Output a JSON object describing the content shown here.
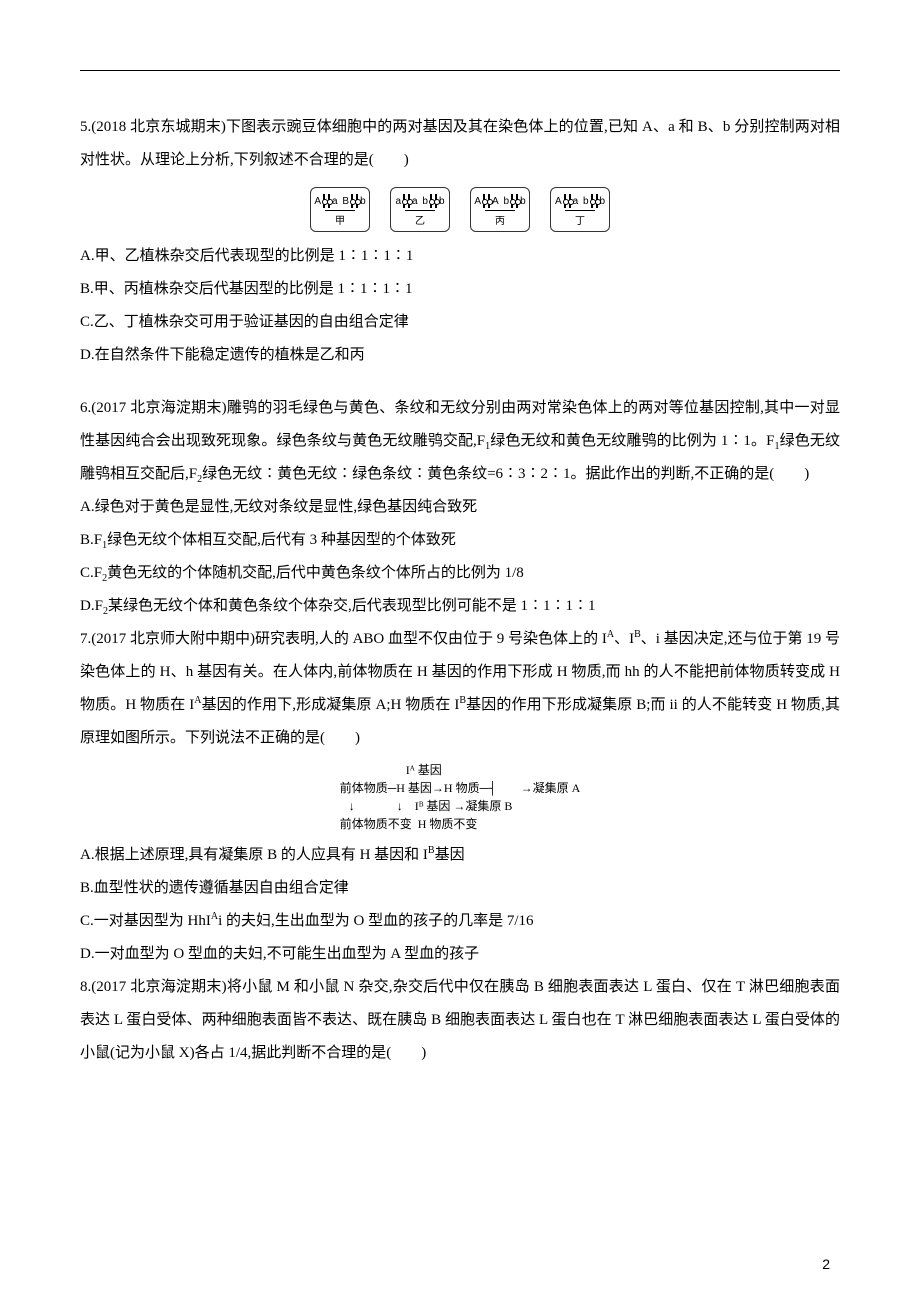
{
  "q5": {
    "stem": "5.(2018 北京东城期末)下图表示豌豆体细胞中的两对基因及其在染色体上的位置,已知 A、a 和 B、b 分别控制两对相对性状。从理论上分析,下列叙述不合理的是(　　)",
    "boxes": [
      {
        "left": "A",
        "right": "a",
        "left2": "B",
        "right2": "b",
        "label": "甲"
      },
      {
        "left": "a",
        "right": "a",
        "left2": "b",
        "right2": "b",
        "label": "乙"
      },
      {
        "left": "A",
        "right": "A",
        "left2": "b",
        "right2": "b",
        "label": "丙"
      },
      {
        "left": "A",
        "right": "a",
        "left2": "b",
        "right2": "b",
        "label": "丁"
      }
    ],
    "opts": {
      "A": "A.甲、乙植株杂交后代表现型的比例是 1∶1∶1∶1",
      "B": "B.甲、丙植株杂交后代基因型的比例是 1∶1∶1∶1",
      "C": "C.乙、丁植株杂交可用于验证基因的自由组合定律",
      "D": "D.在自然条件下能稳定遗传的植株是乙和丙"
    }
  },
  "q6": {
    "stem1": "6.(2017 北京海淀期末)雕鸮的羽毛绿色与黄色、条纹和无纹分别由两对常染色体上的两对等位基因控制,其中一对显性基因纯合会出现致死现象。绿色条纹与黄色无纹雕鸮交配,F",
    "sub1": "1",
    "stem2": "绿色无纹和黄色无纹雕鸮的比例为 1∶1。F",
    "sub2": "1",
    "stem3": "绿色无纹雕鸮相互交配后,F",
    "sub3": "2",
    "stem4": "绿色无纹∶黄色无纹∶绿色条纹∶黄色条纹=6∶3∶2∶1。据此作出的判断,不正确的是(　　)",
    "optA": "A.绿色对于黄色是显性,无纹对条纹是显性,绿色基因纯合致死",
    "optB_pre": "B.F",
    "optB_sub": "1",
    "optB_post": "绿色无纹个体相互交配,后代有 3 种基因型的个体致死",
    "optC_pre": "C.F",
    "optC_sub": "2",
    "optC_post": "黄色无纹的个体随机交配,后代中黄色条纹个体所占的比例为 1/8",
    "optD_pre": "D.F",
    "optD_sub": "2",
    "optD_post": "某绿色无纹个体和黄色条纹个体杂交,后代表现型比例可能不是 1∶1∶1∶1"
  },
  "q7": {
    "stem1": "7.(2017 北京师大附中期中)研究表明,人的 ABO 血型不仅由位于 9 号染色体上的 I",
    "sA": "A",
    "s1": "、I",
    "sB": "B",
    "s2": "、i 基因决定,还与位于第 19 号染色体上的 H、h 基因有关。在人体内,前体物质在 H 基因的作用下形成 H 物质,而 hh 的人不能把前体物质转变成 H 物质。H 物质在 I",
    "sA2": "A",
    "s3": "基因的作用下,形成凝集原 A;H 物质在 I",
    "sB2": "B",
    "s4": "基因的作用下形成凝集原 B;而 ii 的人不能转变 H 物质,其原理如图所示。下列说法不正确的是(　　)",
    "diag_txt": "                      Iᴬ 基因\n前体物质─H 基因→H 物质─┤        →凝集原 A\n   ↓              ↓    Iᴮ 基因 →凝集原 B\n前体物质不变  H 物质不变",
    "optA_pre": "A.根据上述原理,具有凝集原 B 的人应具有 H 基因和 I",
    "optA_sup": "B",
    "optA_post": "基因",
    "optB": "B.血型性状的遗传遵循基因自由组合定律",
    "optC_pre": "C.一对基因型为 HhI",
    "optC_sup": "A",
    "optC_post": "i 的夫妇,生出血型为 O 型血的孩子的几率是 7/16",
    "optD": "D.一对血型为 O 型血的夫妇,不可能生出血型为 A 型血的孩子"
  },
  "q8": {
    "stem": "8.(2017 北京海淀期末)将小鼠 M 和小鼠 N 杂交,杂交后代中仅在胰岛 B 细胞表面表达 L 蛋白、仅在 T 淋巴细胞表面表达 L 蛋白受体、两种细胞表面皆不表达、既在胰岛 B 细胞表面表达 L 蛋白也在 T 淋巴细胞表面表达 L 蛋白受体的小鼠(记为小鼠 X)各占 1/4,据此判断不合理的是(　　)"
  },
  "page_num": "2"
}
